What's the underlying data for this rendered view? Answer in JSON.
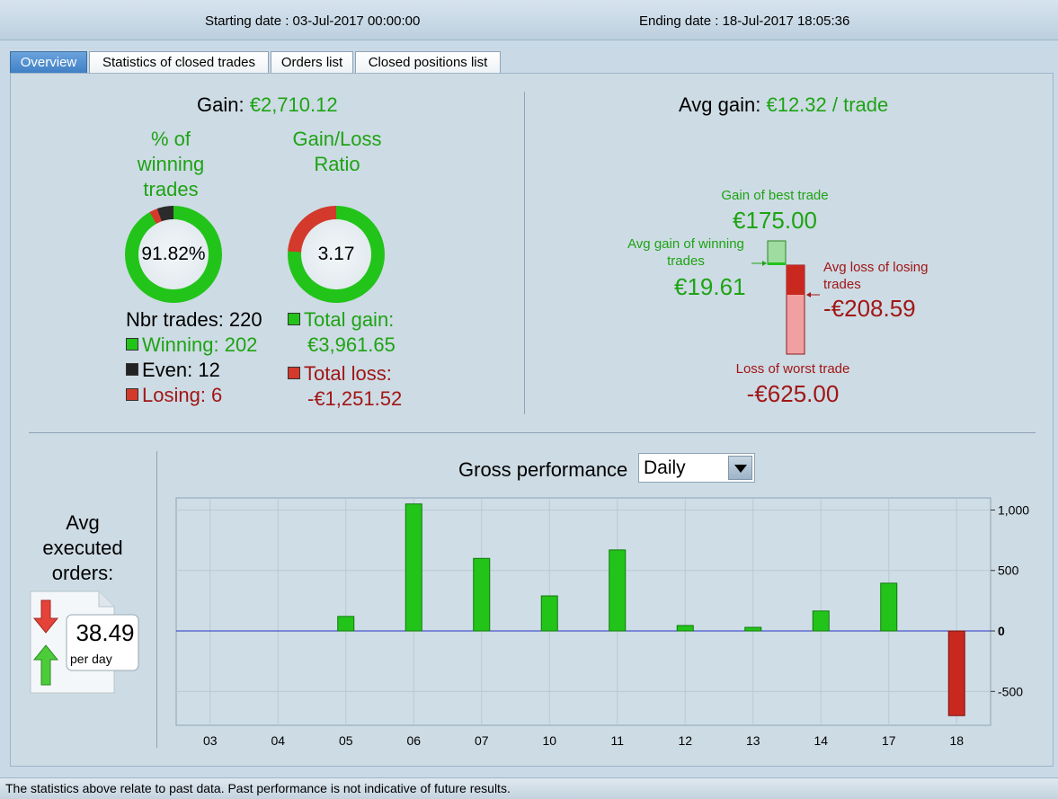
{
  "header": {
    "starting_date": "Starting date : 03-Jul-2017 00:00:00",
    "ending_date": "Ending date : 18-Jul-2017 18:05:36"
  },
  "tabs": [
    {
      "label": "Overview",
      "active": true
    },
    {
      "label": "Statistics of closed trades",
      "active": false
    },
    {
      "label": "Orders list",
      "active": false
    },
    {
      "label": "Closed positions list",
      "active": false
    }
  ],
  "overview": {
    "gain_label": "Gain:",
    "gain_value": "€2,710.12",
    "winning_pct_title_1": "% of",
    "winning_pct_title_2": "winning",
    "winning_pct_title_3": "trades",
    "winning_pct_value": "91.82%",
    "winning_pct": 91.82,
    "even_pct": 5.45,
    "losing_pct": 2.73,
    "ratio_title_1": "Gain/Loss",
    "ratio_title_2": "Ratio",
    "ratio_value": "3.17",
    "gain_share_pct": 76,
    "nbr_trades": "Nbr trades: 220",
    "winning": "Winning: 202",
    "even": "Even: 12",
    "losing": "Losing: 6",
    "total_gain_label": "Total gain:",
    "total_gain_value": "€3,961.65",
    "total_loss_label": "Total loss:",
    "total_loss_value": "-€1,251.52"
  },
  "avg_gain": {
    "label": "Avg gain:",
    "value": "€12.32 / trade",
    "best_label": "Gain of best trade",
    "best_value": "€175.00",
    "avg_win_label_1": "Avg gain of winning",
    "avg_win_label_2": "trades",
    "avg_win_value": "€19.61",
    "avg_loss_label_1": "Avg loss of losing",
    "avg_loss_label_2": "trades",
    "avg_loss_value": "-€208.59",
    "worst_label": "Loss of worst trade",
    "worst_value": "-€625.00"
  },
  "orders": {
    "title_1": "Avg",
    "title_2": "executed",
    "title_3": "orders:",
    "value": "38.49",
    "unit": "per day"
  },
  "performance": {
    "title": "Gross performance",
    "period_selected": "Daily"
  },
  "chart_data": {
    "type": "bar",
    "categories": [
      "03",
      "04",
      "05",
      "06",
      "07",
      "10",
      "11",
      "12",
      "13",
      "14",
      "17",
      "18"
    ],
    "values": [
      0,
      0,
      120,
      1050,
      600,
      290,
      670,
      45,
      30,
      165,
      395,
      -700
    ],
    "yticks": [
      1000,
      500,
      0,
      -500
    ],
    "ytick_labels": [
      "1,000",
      "500",
      "0",
      "-500"
    ],
    "ylim": [
      -780,
      1100
    ],
    "grid": true,
    "colors": {
      "positive": "#22c41a",
      "negative": "#c8281e",
      "zero_line": "#2a32c8"
    }
  },
  "footer": {
    "disclaimer": "The statistics above relate to past data. Past performance is not indicative of future results."
  }
}
